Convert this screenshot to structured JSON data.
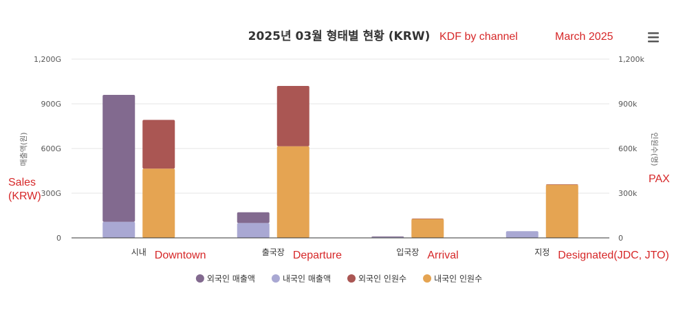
{
  "chart_data": {
    "type": "bar",
    "title": "2025년 03월 형태별 현황 (KRW)",
    "categories": [
      "시내",
      "출국장",
      "입국장",
      "지정"
    ],
    "y_left": {
      "label": "매출액(원)",
      "ylim": [
        0,
        1200
      ],
      "ticks": [
        "0",
        "300G",
        "600G",
        "900G",
        "1,200G"
      ],
      "tick_values": [
        0,
        300,
        600,
        900,
        1200
      ]
    },
    "y_right": {
      "label": "인원수(명)",
      "ylim": [
        0,
        1200
      ],
      "ticks": [
        "0",
        "300k",
        "600k",
        "900k",
        "1,200k"
      ],
      "tick_values": [
        0,
        300,
        600,
        900,
        1200
      ]
    },
    "stacks": [
      {
        "stack": "sales",
        "axis": "left",
        "series": [
          {
            "name": "내국인 매출액",
            "color": "#a9a8d3",
            "values": [
              108,
              100,
              5,
              45
            ]
          },
          {
            "name": "외국인 매출액",
            "color": "#826a8f",
            "values": [
              852,
              72,
              5,
              0
            ]
          }
        ]
      },
      {
        "stack": "pax",
        "axis": "right",
        "series": [
          {
            "name": "내국인 인원수",
            "color": "#e5a452",
            "values": [
              465,
              615,
              127,
              357
            ]
          },
          {
            "name": "외국인 인원수",
            "color": "#aa5653",
            "values": [
              327,
              405,
              3,
              3
            ]
          }
        ]
      }
    ],
    "legend": {
      "placement": "bottom",
      "items": [
        {
          "name": "외국인 매출액",
          "color": "#826a8f"
        },
        {
          "name": "내국인 매출액",
          "color": "#a9a8d3"
        },
        {
          "name": "외국인 인원수",
          "color": "#aa5653"
        },
        {
          "name": "내국인 인원수",
          "color": "#e5a452"
        }
      ]
    },
    "grid": true
  },
  "annotations": {
    "subtitle_en": "KDF by channel",
    "period_en": "March 2025",
    "left_axis_line1": "Sales",
    "left_axis_line2": "(KRW)",
    "right_axis": "PAX",
    "categories_en": [
      "Downtown",
      "Departure",
      "Arrival",
      "Designated(JDC, JTO)"
    ]
  },
  "menu_icon": "hamburger-menu-icon"
}
